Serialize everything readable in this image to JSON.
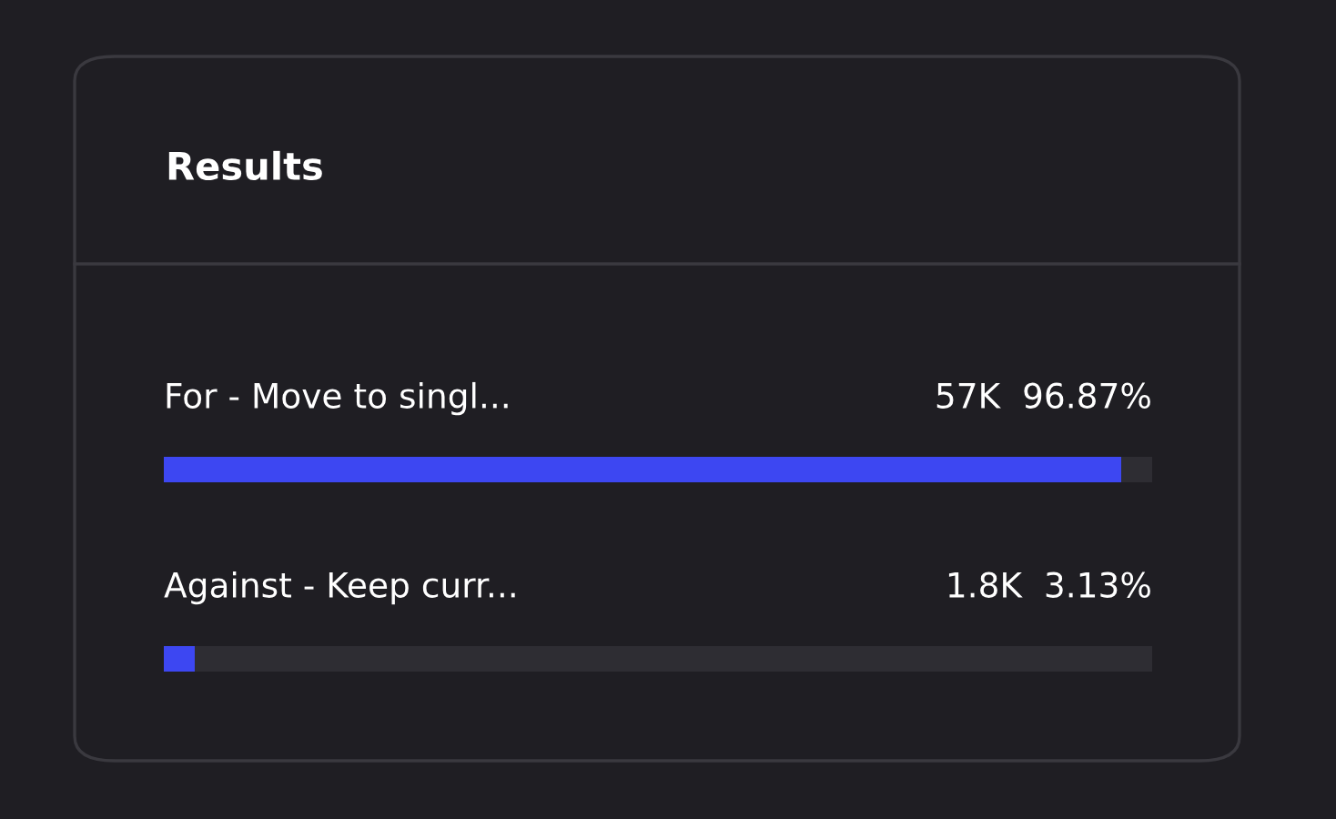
{
  "chart_data": {
    "type": "bar",
    "orientation": "horizontal",
    "title": "Results",
    "categories": [
      "For - Move to singl...",
      "Against - Keep curr..."
    ],
    "values": [
      96.87,
      3.13
    ],
    "value_labels": [
      "57K  96.87%",
      "1.8K  3.13%"
    ],
    "color": "#3d47f2",
    "xlim": [
      0,
      100
    ],
    "tick_labels": false
  }
}
